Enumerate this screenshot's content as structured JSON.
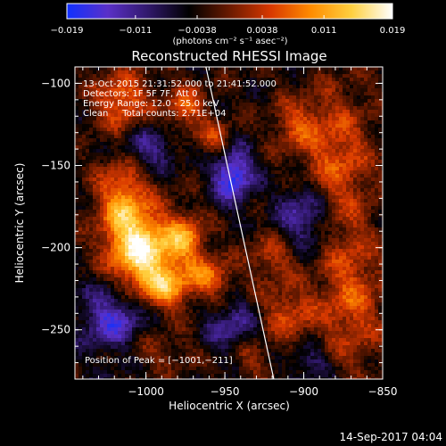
{
  "chart_data": {
    "type": "heatmap",
    "title": "Reconstructed RHESSI Image",
    "xlabel": "Heliocentric X (arcsec)",
    "ylabel": "Heliocentric Y (arcsec)",
    "xlim": [
      -1045,
      -850
    ],
    "ylim": [
      -280,
      -90
    ],
    "x_ticks": [
      {
        "value": -1000,
        "label": "−1000"
      },
      {
        "value": -950,
        "label": "−950"
      },
      {
        "value": -900,
        "label": "−900"
      },
      {
        "value": -850,
        "label": "−850"
      }
    ],
    "y_ticks": [
      {
        "value": -100,
        "label": "−100"
      },
      {
        "value": -150,
        "label": "−150"
      },
      {
        "value": -200,
        "label": "−200"
      },
      {
        "value": -250,
        "label": "−250"
      }
    ],
    "colorbar": {
      "min": -0.019,
      "max": 0.019,
      "ticks": [
        {
          "value": -0.019,
          "label": "−0.019"
        },
        {
          "value": -0.011,
          "label": "−0.011"
        },
        {
          "value": -0.0038,
          "label": "−0.0038"
        },
        {
          "value": 0.0038,
          "label": "0.0038"
        },
        {
          "value": 0.011,
          "label": "0.011"
        },
        {
          "value": 0.019,
          "label": "0.019"
        }
      ],
      "units_label": "(photons cm⁻² s⁻¹ asec⁻²)",
      "colors": [
        "#1030ff",
        "#5a30c8",
        "#30186a",
        "#000000",
        "#6a1a00",
        "#d83800",
        "#ff8c00",
        "#ffd040",
        "#ffffff"
      ]
    },
    "annotations": [
      "13-Oct-2015 21:31:52.000 to 21:41:52.000",
      "Detectors: 1F 5F 7F, Att 0",
      "Energy Range: 12.0 - 25.0 keV",
      "Clean     Total counts: 2.71E+04"
    ],
    "peak_label": "Position of Peak = [−1001,−211]",
    "peak": {
      "x": -1001,
      "y": -211
    },
    "limb_line": [
      [
        -962,
        -90
      ],
      [
        -919,
        -280
      ]
    ],
    "sources": [
      {
        "x": -1000,
        "y": -205,
        "sx": 14,
        "sy": 18,
        "amp": 0.019
      },
      {
        "x": -1015,
        "y": -175,
        "sx": 11,
        "sy": 22,
        "amp": 0.013
      },
      {
        "x": -975,
        "y": -195,
        "sx": 9,
        "sy": 10,
        "amp": 0.012
      },
      {
        "x": -960,
        "y": -218,
        "sx": 10,
        "sy": 8,
        "amp": 0.011
      },
      {
        "x": -985,
        "y": -225,
        "sx": 10,
        "sy": 8,
        "amp": 0.01
      },
      {
        "x": -1015,
        "y": -110,
        "sx": 12,
        "sy": 12,
        "amp": 0.011
      },
      {
        "x": -975,
        "y": -115,
        "sx": 9,
        "sy": 10,
        "amp": 0.009
      },
      {
        "x": -955,
        "y": -135,
        "sx": 8,
        "sy": 8,
        "amp": 0.008
      },
      {
        "x": -880,
        "y": -145,
        "sx": 16,
        "sy": 28,
        "amp": 0.009
      },
      {
        "x": -905,
        "y": -125,
        "sx": 10,
        "sy": 10,
        "amp": 0.007
      },
      {
        "x": -870,
        "y": -230,
        "sx": 14,
        "sy": 30,
        "amp": 0.009
      },
      {
        "x": -910,
        "y": -240,
        "sx": 12,
        "sy": 12,
        "amp": 0.008
      },
      {
        "x": -920,
        "y": -205,
        "sx": 10,
        "sy": 10,
        "amp": 0.007
      },
      {
        "x": -935,
        "y": -265,
        "sx": 10,
        "sy": 8,
        "amp": 0.006
      },
      {
        "x": -1000,
        "y": -262,
        "sx": 20,
        "sy": 8,
        "amp": 0.005
      },
      {
        "x": -945,
        "y": -155,
        "sx": 9,
        "sy": 12,
        "amp": -0.015
      },
      {
        "x": -1000,
        "y": -140,
        "sx": 14,
        "sy": 10,
        "amp": -0.008
      },
      {
        "x": -1020,
        "y": -245,
        "sx": 14,
        "sy": 16,
        "amp": -0.012
      },
      {
        "x": -945,
        "y": -250,
        "sx": 12,
        "sy": 12,
        "amp": -0.008
      },
      {
        "x": -900,
        "y": -180,
        "sx": 12,
        "sy": 14,
        "amp": -0.01
      },
      {
        "x": -895,
        "y": -270,
        "sx": 10,
        "sy": 8,
        "amp": -0.006
      }
    ],
    "grid": false
  },
  "footer_timestamp": "14-Sep-2017 04:04"
}
